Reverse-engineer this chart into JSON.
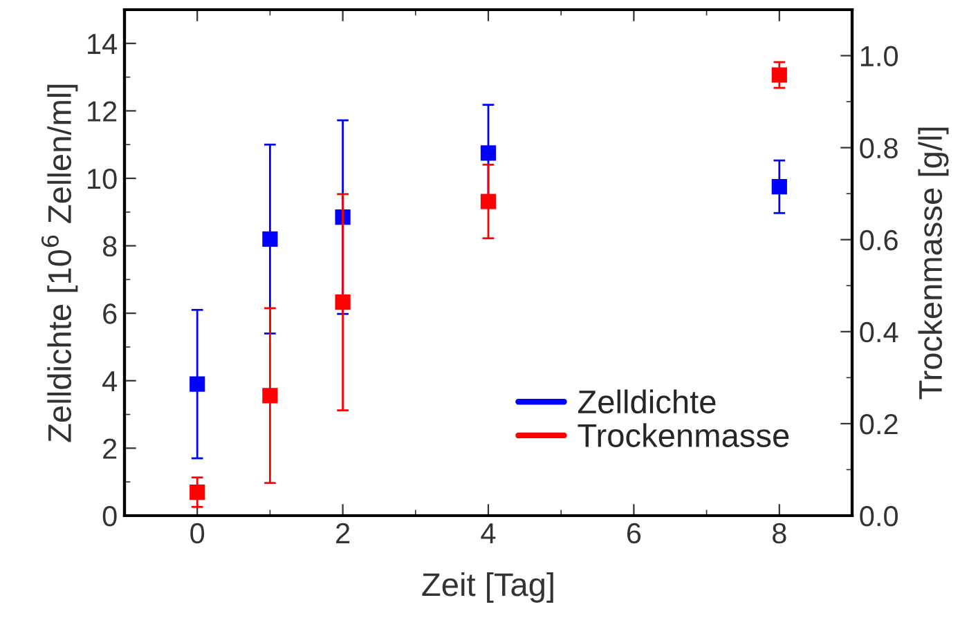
{
  "chart_data": {
    "type": "scatter",
    "xlabel": "Zeit [Tag]",
    "ylabel": "Zelldichte [10$^{6}$ Zellen/ml]",
    "y2label": "Trockenmasse [g/l]",
    "x": [
      0,
      1,
      2,
      4,
      8
    ],
    "series": [
      {
        "name": "Zelldichte",
        "color": "#0000ff",
        "values": [
          3.9,
          8.2,
          8.85,
          10.75,
          9.75
        ],
        "errors": [
          2.2,
          2.8,
          2.87,
          1.43,
          0.78
        ]
      },
      {
        "name": "Trockenmasse",
        "color": "#ff0000",
        "axis": "y2",
        "values": [
          0.051,
          0.261,
          0.464,
          0.683,
          0.958
        ],
        "errors": [
          0.032,
          0.19,
          0.235,
          0.08,
          0.028
        ]
      }
    ],
    "xlim": [
      -1,
      9
    ],
    "xticks": [
      0,
      2,
      4,
      6,
      8
    ],
    "ylim": [
      0,
      15
    ],
    "yticks": [
      0,
      2,
      4,
      6,
      8,
      10,
      12,
      14
    ],
    "y2lim": [
      0,
      1.1
    ],
    "y2ticks": [
      {
        "value": 0,
        "label": "0.0"
      },
      {
        "value": 0.2,
        "label": "0.2"
      },
      {
        "value": 0.4,
        "label": "0.4"
      },
      {
        "value": 0.6,
        "label": "0.6"
      },
      {
        "value": 0.8,
        "label": "0.8"
      },
      {
        "value": 1.0,
        "label": "1.0"
      }
    ],
    "marker": "square",
    "grid": false,
    "legend": "bottom right"
  }
}
